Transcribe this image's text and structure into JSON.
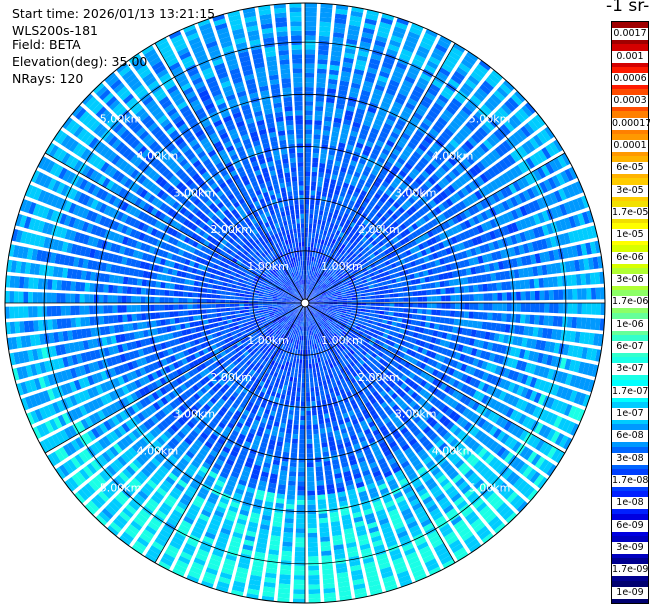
{
  "header": {
    "start_time": "Start time: 2026/01/13 13:21:15",
    "device": "WLS200s-181",
    "field": "Field: BETA",
    "elevation": "Elevation(deg): 35.00",
    "nrays": "NRays: 120"
  },
  "colorbar": {
    "units_label": "-1 sr-",
    "levels": [
      "0.0017",
      "0.001",
      "0.0006",
      "0.0003",
      "0.00017",
      "0.0001",
      "6e-05",
      "3e-05",
      "1.7e-05",
      "1e-05",
      "6e-06",
      "3e-06",
      "1.7e-06",
      "1e-06",
      "6e-07",
      "3e-07",
      "1.7e-07",
      "1e-07",
      "6e-08",
      "3e-08",
      "1.7e-08",
      "1e-08",
      "6e-09",
      "3e-09",
      "1.7e-09",
      "1e-09"
    ],
    "colors": [
      "#a00000",
      "#d40000",
      "#ff1a00",
      "#ff4c00",
      "#ff8000",
      "#ff9900",
      "#ffb300",
      "#ffcc00",
      "#f2e000",
      "#ffff00",
      "#d8ff00",
      "#b0ff33",
      "#8cff66",
      "#66ff99",
      "#33ffcc",
      "#1affe6",
      "#00ffff",
      "#00ccff",
      "#0099ff",
      "#0066ff",
      "#0040ff",
      "#0020ff",
      "#0000e0",
      "#0000c0",
      "#000090",
      "#000070"
    ]
  },
  "chart_data": {
    "type": "heatmap",
    "projection": "polar-ppi",
    "nrays": 120,
    "elevation_deg": 35.0,
    "max_range_km": 5.75,
    "range_rings_km": [
      1.0,
      2.0,
      3.0,
      4.0,
      5.0
    ],
    "ring_labels": [
      "1.00km",
      "2.00km",
      "3.00km",
      "4.00km",
      "5.00km"
    ],
    "radial_lines_deg": [
      0,
      30,
      60,
      90,
      120,
      150,
      180,
      210,
      240,
      270,
      300,
      330
    ],
    "colorscale": "log",
    "value_range": [
      1e-09,
      0.0017
    ],
    "typical_values": {
      "near_center_0_2km": 1.7e-08,
      "mid_range_2_4km": 6e-08,
      "south_far_range_4_5_5km": 1.7e-07
    },
    "grid": true
  }
}
